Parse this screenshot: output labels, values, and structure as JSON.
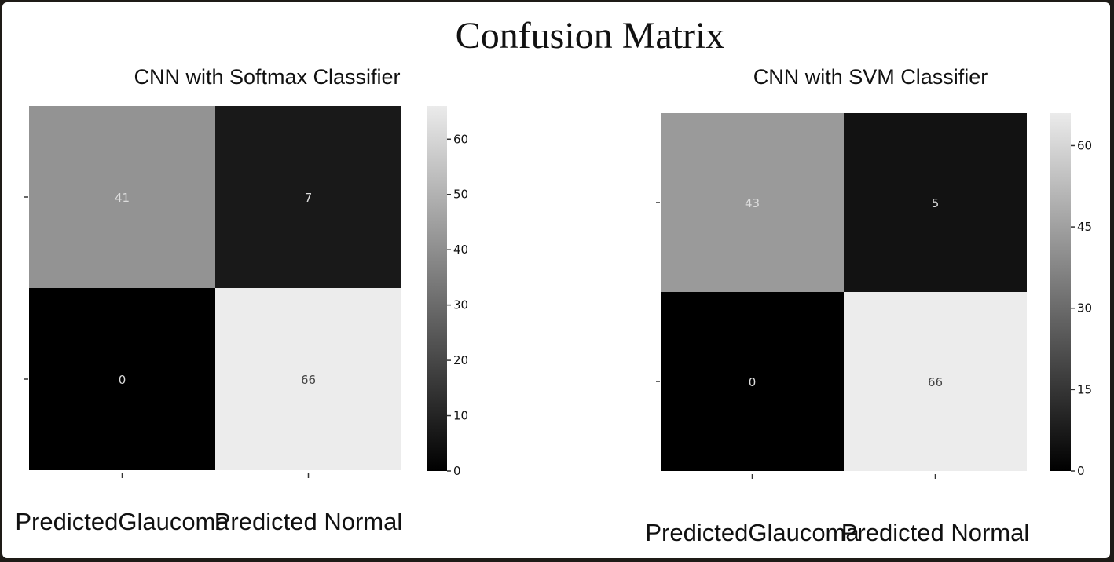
{
  "figure_title": "Confusion Matrix",
  "colors": {
    "low": "#000000",
    "high": "#ebebeb",
    "light_text": "#dddddd",
    "dark_text": "#444444"
  },
  "chart_data": [
    {
      "type": "heatmap",
      "title": "CNN with Softmax Classifier",
      "x_categories": [
        "PredictedGlaucoma",
        "Predicted Normal"
      ],
      "y_categories": [
        "",
        ""
      ],
      "values": [
        [
          41,
          7
        ],
        [
          0,
          66
        ]
      ],
      "colorbar": {
        "min": 0,
        "max": 66,
        "ticks": [
          0,
          10,
          20,
          30,
          40,
          50,
          60
        ],
        "colormap": "gray"
      }
    },
    {
      "type": "heatmap",
      "title": "CNN with SVM Classifier",
      "x_categories": [
        "PredictedGlaucoma",
        "Predicted Normal"
      ],
      "y_categories": [
        "",
        ""
      ],
      "values": [
        [
          43,
          5
        ],
        [
          0,
          66
        ]
      ],
      "colorbar": {
        "min": 0,
        "max": 66,
        "ticks": [
          0,
          15,
          30,
          45,
          60
        ],
        "colormap": "gray"
      }
    }
  ]
}
